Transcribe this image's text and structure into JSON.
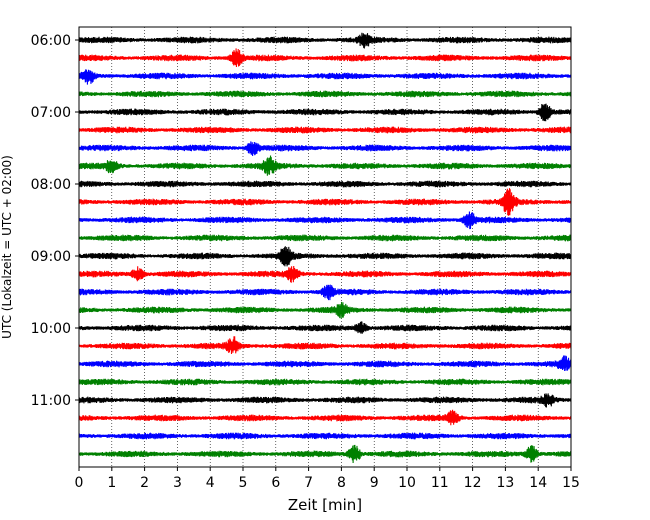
{
  "chart_data": {
    "type": "line",
    "title": "",
    "xlabel": "Zeit  [min]",
    "ylabel": "UTC (Lokalzeit = UTC + 02:00)",
    "xlim": [
      0,
      15
    ],
    "x_ticks": [
      0,
      1,
      2,
      3,
      4,
      5,
      6,
      7,
      8,
      9,
      10,
      11,
      12,
      13,
      14,
      15
    ],
    "x_tick_labels": [
      "0",
      "1",
      "2",
      "3",
      "4",
      "5",
      "6",
      "7",
      "8",
      "9",
      "10",
      "11",
      "12",
      "13",
      "14",
      "15"
    ],
    "y_tick_labels": [
      "06:00",
      "07:00",
      "08:00",
      "09:00",
      "10:00",
      "11:00"
    ],
    "trace_interval_min": 15,
    "start_time": "06:00",
    "grid": "vertical dotted",
    "legend": "none",
    "color_cycle": [
      "#000000",
      "#ff0000",
      "#0000ff",
      "#008000"
    ],
    "traces": [
      {
        "start": "06:00",
        "events": [
          {
            "t": 8.7,
            "amp": 1.6
          }
        ]
      },
      {
        "start": "06:15",
        "events": [
          {
            "t": 4.8,
            "amp": 2.4
          }
        ]
      },
      {
        "start": "06:30",
        "events": [
          {
            "t": 0.3,
            "amp": 1.8
          }
        ]
      },
      {
        "start": "06:45",
        "events": []
      },
      {
        "start": "07:00",
        "events": [
          {
            "t": 14.2,
            "amp": 2.5
          }
        ]
      },
      {
        "start": "07:15",
        "events": []
      },
      {
        "start": "07:30",
        "events": [
          {
            "t": 5.3,
            "amp": 1.8
          }
        ]
      },
      {
        "start": "07:45",
        "events": [
          {
            "t": 1.0,
            "amp": 1.8
          },
          {
            "t": 5.8,
            "amp": 2.2
          }
        ]
      },
      {
        "start": "08:00",
        "events": []
      },
      {
        "start": "08:15",
        "events": [
          {
            "t": 13.1,
            "amp": 3.5
          }
        ]
      },
      {
        "start": "08:30",
        "events": [
          {
            "t": 11.9,
            "amp": 2.4
          }
        ]
      },
      {
        "start": "08:45",
        "events": []
      },
      {
        "start": "09:00",
        "events": [
          {
            "t": 6.3,
            "amp": 2.4
          }
        ]
      },
      {
        "start": "09:15",
        "events": [
          {
            "t": 1.8,
            "amp": 1.8
          },
          {
            "t": 6.5,
            "amp": 1.8
          }
        ]
      },
      {
        "start": "09:30",
        "events": [
          {
            "t": 7.6,
            "amp": 1.8
          }
        ]
      },
      {
        "start": "09:45",
        "events": [
          {
            "t": 8.0,
            "amp": 1.6
          }
        ]
      },
      {
        "start": "10:00",
        "events": [
          {
            "t": 8.6,
            "amp": 1.5
          }
        ]
      },
      {
        "start": "10:15",
        "events": [
          {
            "t": 4.7,
            "amp": 2.2
          }
        ]
      },
      {
        "start": "10:30",
        "events": [
          {
            "t": 14.8,
            "amp": 1.6
          }
        ]
      },
      {
        "start": "10:45",
        "events": []
      },
      {
        "start": "11:00",
        "events": [
          {
            "t": 14.3,
            "amp": 1.5
          }
        ]
      },
      {
        "start": "11:15",
        "events": [
          {
            "t": 11.4,
            "amp": 1.8
          }
        ]
      },
      {
        "start": "11:30",
        "events": []
      },
      {
        "start": "11:45",
        "events": [
          {
            "t": 8.4,
            "amp": 2.4
          },
          {
            "t": 13.8,
            "amp": 2.2
          }
        ]
      }
    ]
  }
}
